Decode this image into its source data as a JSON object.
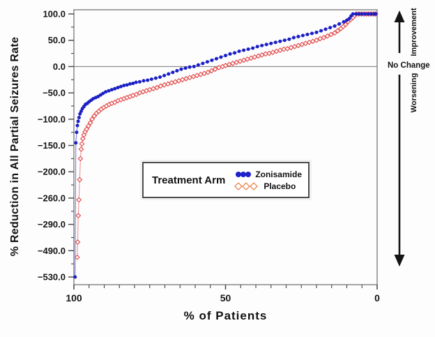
{
  "y_axis": {
    "title": "% Reduction in All Partial Seizures Rate",
    "tick_labels": [
      "100.0",
      "50.0",
      "0.0",
      "−50.0",
      "−100.0",
      "−150.0",
      "−200.0",
      "−260.0",
      "−290.0",
      "−490.0",
      "−530.0"
    ]
  },
  "x_axis": {
    "title": "% of Patients",
    "tick_labels": [
      "100",
      "50",
      "0"
    ]
  },
  "legend": {
    "title": "Treatment Arm",
    "entries": [
      {
        "label": "Zonisamide",
        "marker": "filled-circle",
        "color": "#1e22c8"
      },
      {
        "label": "Placebo",
        "marker": "open-diamond",
        "color": "#e8611c"
      }
    ]
  },
  "annotations": {
    "improvement": "Improvement",
    "no_change": "No Change",
    "worsening": "Worsening"
  },
  "chart_data": {
    "type": "line",
    "title": "",
    "xlabel": "% of Patients",
    "ylabel": "% Reduction in All Partial Seizures Rate",
    "x_axis_reversed": true,
    "x_range": [
      100,
      0
    ],
    "x_major_ticks": [
      100,
      50,
      0
    ],
    "x_minor_tick_step": 5,
    "y_tick_values": [
      100,
      50,
      0,
      -50,
      -100,
      -150,
      -200,
      -260,
      -290,
      -490,
      -530
    ],
    "y_axis_note": "ticks evenly spaced on screen but non-linear in value",
    "zero_reference_line": true,
    "grid": false,
    "legend_position": "inside-center-left",
    "series": [
      {
        "name": "Zonisamide",
        "marker": "filled-circle",
        "marker_color": "#1c20c4",
        "line_color": "#7a7aec",
        "points": [
          [
            99.6,
            -530
          ],
          [
            99.35,
            -145
          ],
          [
            99.1,
            -125
          ],
          [
            98.85,
            -112
          ],
          [
            98.6,
            -104
          ],
          [
            98.3,
            -97
          ],
          [
            98.0,
            -90
          ],
          [
            97.6,
            -85
          ],
          [
            97.2,
            -80
          ],
          [
            96.7,
            -76
          ],
          [
            96.2,
            -72
          ],
          [
            95.6,
            -70
          ],
          [
            95.0,
            -67
          ],
          [
            94.3,
            -64
          ],
          [
            93.6,
            -61
          ],
          [
            92.8,
            -59
          ],
          [
            92.0,
            -57
          ],
          [
            91.2,
            -54
          ],
          [
            90.4,
            -51
          ],
          [
            89.5,
            -48
          ],
          [
            88.5,
            -46
          ],
          [
            87.5,
            -44
          ],
          [
            86.5,
            -42
          ],
          [
            85.5,
            -40
          ],
          [
            84.5,
            -38
          ],
          [
            83.5,
            -36
          ],
          [
            82.5,
            -35
          ],
          [
            81.5,
            -33
          ],
          [
            80.5,
            -32
          ],
          [
            79.5,
            -30
          ],
          [
            78.3,
            -29
          ],
          [
            77.0,
            -27
          ],
          [
            75.7,
            -26
          ],
          [
            74.4,
            -24
          ],
          [
            73.0,
            -22
          ],
          [
            71.6,
            -20
          ],
          [
            70.2,
            -17
          ],
          [
            68.8,
            -14
          ],
          [
            67.4,
            -11
          ],
          [
            66.0,
            -8
          ],
          [
            64.6,
            -5
          ],
          [
            63.2,
            -3
          ],
          [
            61.8,
            -1
          ],
          [
            60.4,
            0
          ],
          [
            59.0,
            3
          ],
          [
            57.5,
            6
          ],
          [
            56.0,
            9
          ],
          [
            54.5,
            12
          ],
          [
            53.0,
            15
          ],
          [
            51.5,
            18
          ],
          [
            50.0,
            21
          ],
          [
            48.5,
            24
          ],
          [
            47.0,
            26
          ],
          [
            45.5,
            29
          ],
          [
            44.0,
            31
          ],
          [
            42.5,
            33
          ],
          [
            41.0,
            35
          ],
          [
            39.5,
            38
          ],
          [
            38.0,
            40
          ],
          [
            36.5,
            42
          ],
          [
            35.0,
            44
          ],
          [
            33.5,
            46
          ],
          [
            32.0,
            48
          ],
          [
            30.5,
            50
          ],
          [
            29.0,
            52
          ],
          [
            27.5,
            55
          ],
          [
            26.0,
            57
          ],
          [
            24.5,
            59
          ],
          [
            23.0,
            61
          ],
          [
            21.5,
            63
          ],
          [
            20.0,
            65
          ],
          [
            18.5,
            68
          ],
          [
            17.0,
            71
          ],
          [
            15.5,
            74
          ],
          [
            14.0,
            77
          ],
          [
            12.5,
            81
          ],
          [
            11.0,
            85
          ],
          [
            10.0,
            88
          ],
          [
            9.2,
            91
          ],
          [
            8.6,
            96
          ],
          [
            8.0,
            100
          ],
          [
            7.0,
            100
          ],
          [
            6.0,
            100
          ],
          [
            5.0,
            100
          ],
          [
            4.0,
            100
          ],
          [
            3.0,
            100
          ],
          [
            2.0,
            100
          ],
          [
            1.0,
            100
          ],
          [
            0.5,
            100
          ]
        ]
      },
      {
        "name": "Placebo",
        "marker": "open-diamond",
        "marker_color": "#e34f4f",
        "line_color": "#f2928e",
        "points": [
          [
            98.9,
            -500
          ],
          [
            98.75,
            -425
          ],
          [
            98.55,
            -280
          ],
          [
            98.35,
            -262
          ],
          [
            98.1,
            -218
          ],
          [
            97.85,
            -175
          ],
          [
            97.6,
            -157
          ],
          [
            97.35,
            -147
          ],
          [
            97.05,
            -137
          ],
          [
            96.7,
            -130
          ],
          [
            96.3,
            -124
          ],
          [
            95.8,
            -119
          ],
          [
            95.2,
            -113
          ],
          [
            94.6,
            -107
          ],
          [
            94.0,
            -100
          ],
          [
            93.3,
            -94
          ],
          [
            92.6,
            -89
          ],
          [
            91.8,
            -85
          ],
          [
            91.0,
            -81
          ],
          [
            90.2,
            -78
          ],
          [
            89.3,
            -75
          ],
          [
            88.4,
            -72
          ],
          [
            87.5,
            -70
          ],
          [
            86.5,
            -68
          ],
          [
            85.5,
            -65
          ],
          [
            84.5,
            -63
          ],
          [
            83.5,
            -61
          ],
          [
            82.5,
            -59
          ],
          [
            81.5,
            -57
          ],
          [
            80.5,
            -55
          ],
          [
            79.4,
            -53
          ],
          [
            78.3,
            -50
          ],
          [
            77.2,
            -48
          ],
          [
            76.1,
            -46
          ],
          [
            75.0,
            -44
          ],
          [
            73.8,
            -42
          ],
          [
            72.6,
            -40
          ],
          [
            71.4,
            -37
          ],
          [
            70.2,
            -35
          ],
          [
            69.0,
            -33
          ],
          [
            67.8,
            -31
          ],
          [
            66.6,
            -29
          ],
          [
            65.4,
            -27
          ],
          [
            64.2,
            -25
          ],
          [
            63.0,
            -23
          ],
          [
            61.8,
            -21
          ],
          [
            60.6,
            -19
          ],
          [
            59.4,
            -17
          ],
          [
            58.2,
            -15
          ],
          [
            57.0,
            -13
          ],
          [
            55.8,
            -11
          ],
          [
            54.6,
            -8
          ],
          [
            53.4,
            -5
          ],
          [
            52.2,
            -2
          ],
          [
            51.0,
            0
          ],
          [
            50.0,
            2
          ],
          [
            48.8,
            4
          ],
          [
            47.6,
            6
          ],
          [
            46.4,
            8
          ],
          [
            45.2,
            10
          ],
          [
            44.0,
            12
          ],
          [
            42.8,
            14
          ],
          [
            41.6,
            16
          ],
          [
            40.4,
            18
          ],
          [
            39.2,
            20
          ],
          [
            38.0,
            22
          ],
          [
            36.8,
            24
          ],
          [
            35.6,
            25
          ],
          [
            34.4,
            27
          ],
          [
            33.2,
            29
          ],
          [
            32.0,
            31
          ],
          [
            30.8,
            33
          ],
          [
            29.6,
            34
          ],
          [
            28.4,
            36
          ],
          [
            27.2,
            38
          ],
          [
            26.0,
            40
          ],
          [
            24.8,
            42
          ],
          [
            23.6,
            44
          ],
          [
            22.4,
            46
          ],
          [
            21.2,
            48
          ],
          [
            20.0,
            50
          ],
          [
            18.8,
            53
          ],
          [
            17.6,
            55
          ],
          [
            16.4,
            58
          ],
          [
            15.2,
            61
          ],
          [
            14.0,
            64
          ],
          [
            13.0,
            68
          ],
          [
            12.0,
            72
          ],
          [
            11.2,
            76
          ],
          [
            10.4,
            80
          ],
          [
            9.6,
            85
          ],
          [
            8.8,
            89
          ],
          [
            8.0,
            93
          ],
          [
            7.4,
            97
          ],
          [
            6.8,
            100
          ],
          [
            6.0,
            100
          ],
          [
            5.2,
            100
          ],
          [
            4.4,
            100
          ],
          [
            3.6,
            100
          ],
          [
            2.8,
            100
          ],
          [
            2.0,
            100
          ],
          [
            1.2,
            100
          ],
          [
            0.5,
            100
          ]
        ]
      }
    ]
  }
}
